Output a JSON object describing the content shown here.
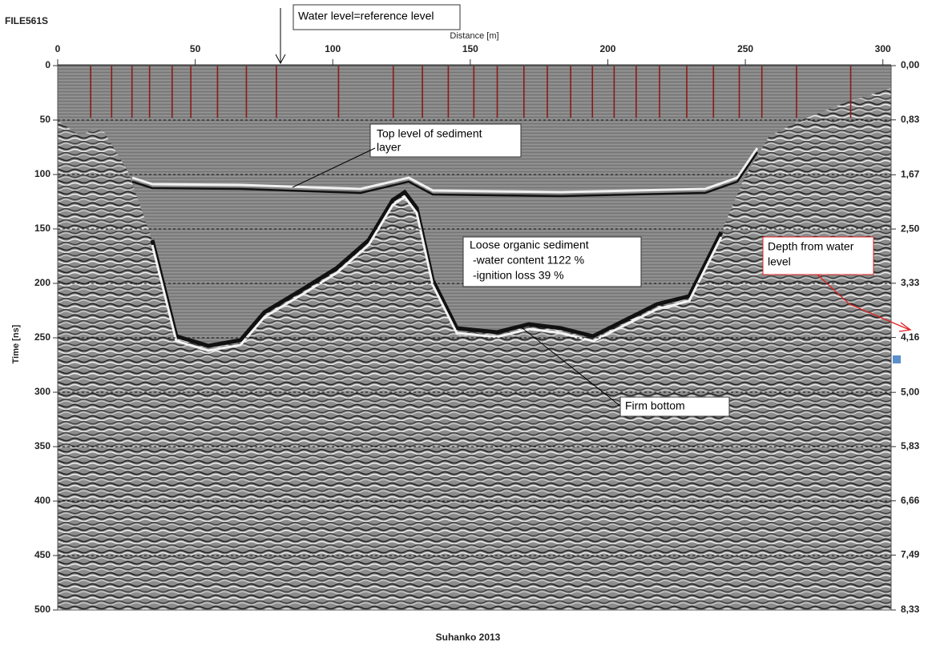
{
  "chart_data": {
    "type": "radargram",
    "title": "FILE561S",
    "xlabel": "Distance [m]",
    "ylabel": "Time [ns]",
    "footer": "Suhanko 2013",
    "xlim": [
      0,
      303
    ],
    "xticks": [
      0,
      50,
      100,
      150,
      200,
      250,
      300
    ],
    "ylim": [
      0,
      500
    ],
    "yticks": [
      0,
      50,
      100,
      150,
      200,
      250,
      300,
      350,
      400,
      450,
      500
    ],
    "y2lim": [
      0,
      8.33
    ],
    "y2ticks": [
      {
        "value": 0,
        "label": "0,00"
      },
      {
        "value": 0.83,
        "label": "0,83"
      },
      {
        "value": 1.67,
        "label": "1,67"
      },
      {
        "value": 2.5,
        "label": "2,50"
      },
      {
        "value": 3.33,
        "label": "3,33"
      },
      {
        "value": 4.16,
        "label": "4,16"
      },
      {
        "value": 5,
        "label": "5,00"
      },
      {
        "value": 5.83,
        "label": "5,83"
      },
      {
        "value": 6.66,
        "label": "6,66"
      },
      {
        "value": 7.49,
        "label": "7,49"
      },
      {
        "value": 8.33,
        "label": "8,33"
      }
    ],
    "grid": true,
    "markers": {
      "color": "#8b1a1a",
      "x": [
        12,
        19.6,
        27,
        33.4,
        41.6,
        48.4,
        58.1,
        68.6,
        79.5,
        102.1,
        122,
        132.6,
        142,
        151.3,
        159.8,
        169.5,
        178,
        186.5,
        194.4,
        202.3,
        210.3,
        218.8,
        228.7,
        238.4,
        247.8,
        256,
        268.6,
        288.3
      ]
    },
    "annotations": {
      "water_level": "Water level=reference level",
      "top_level": [
        "Top level of sediment",
        "layer"
      ],
      "loose_sediment": [
        "Loose organic sediment",
        "-water content 1122 %",
        "-ignition loss 39 %"
      ],
      "firm_bottom": "Firm bottom",
      "depth": [
        "Depth from water",
        "level"
      ]
    }
  }
}
